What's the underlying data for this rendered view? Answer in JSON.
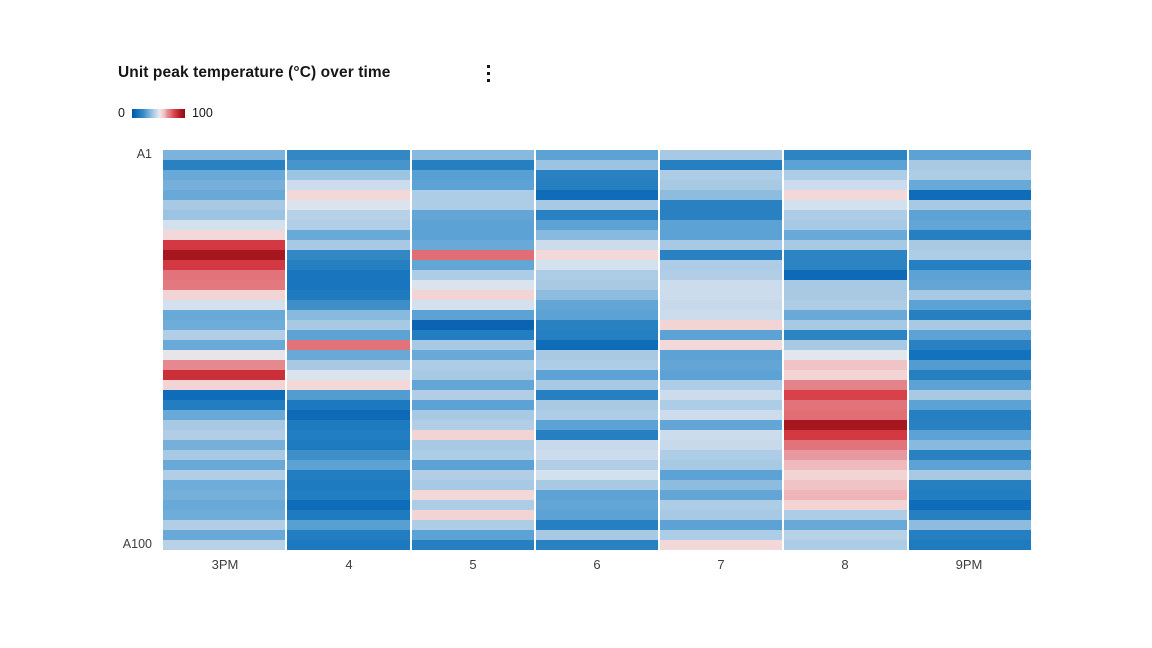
{
  "header": {
    "title": "Unit peak temperature (°C) over time",
    "menu_icon": "overflow-menu-vertical"
  },
  "legend": {
    "min": "0",
    "max": "100"
  },
  "chart_data": {
    "type": "heatmap",
    "title": "Unit peak temperature (°C) over time",
    "x": [
      "3PM",
      "4",
      "5",
      "6",
      "7",
      "8",
      "9PM"
    ],
    "y_first": "A1",
    "y_last": "A100",
    "rows": 40,
    "value_range": [
      0,
      100
    ],
    "legend_position": "top-left",
    "grid": "off",
    "color_scale": {
      "stops": [
        [
          0,
          "#0353a4"
        ],
        [
          10,
          "#1272bd"
        ],
        [
          20,
          "#3388c4"
        ],
        [
          30,
          "#68a9d8"
        ],
        [
          40,
          "#a8c9e4"
        ],
        [
          47,
          "#ccdcec"
        ],
        [
          50,
          "#e2e7ee"
        ],
        [
          53,
          "#f0e2e2"
        ],
        [
          57,
          "#f2d4d4"
        ],
        [
          63,
          "#eeb4b8"
        ],
        [
          65,
          "#e898a0"
        ],
        [
          72,
          "#e2737b"
        ],
        [
          80,
          "#d8404a"
        ],
        [
          85,
          "#cb2f38"
        ],
        [
          93,
          "#a5161f"
        ],
        [
          100,
          "#8a0e17"
        ]
      ]
    },
    "values": [
      [
        33,
        20,
        35,
        28,
        40,
        18,
        28
      ],
      [
        17,
        24,
        16,
        38,
        16,
        28,
        40
      ],
      [
        30,
        38,
        27,
        17,
        41,
        41,
        41
      ],
      [
        32,
        47,
        28,
        16,
        40,
        47,
        30
      ],
      [
        30,
        56,
        41,
        8,
        36,
        56,
        8
      ],
      [
        40,
        49,
        41,
        40,
        17,
        48,
        40
      ],
      [
        38,
        43,
        29,
        17,
        17,
        41,
        28
      ],
      [
        48,
        42,
        28,
        28,
        28,
        40,
        29
      ],
      [
        56,
        30,
        28,
        35,
        28,
        30,
        16
      ],
      [
        82,
        40,
        30,
        47,
        40,
        40,
        40
      ],
      [
        93,
        20,
        73,
        56,
        17,
        18,
        41
      ],
      [
        82,
        16,
        29,
        48,
        41,
        18,
        16
      ],
      [
        72,
        12,
        41,
        41,
        42,
        7,
        28
      ],
      [
        71,
        12,
        49,
        40,
        47,
        40,
        29
      ],
      [
        57,
        14,
        57,
        36,
        47,
        40,
        40
      ],
      [
        48,
        22,
        48,
        29,
        46,
        41,
        28
      ],
      [
        30,
        35,
        28,
        28,
        47,
        30,
        16
      ],
      [
        31,
        40,
        5,
        17,
        57,
        40,
        40
      ],
      [
        42,
        28,
        15,
        16,
        28,
        18,
        28
      ],
      [
        30,
        72,
        40,
        8,
        56,
        40,
        17
      ],
      [
        51,
        30,
        30,
        40,
        28,
        50,
        10
      ],
      [
        68,
        40,
        41,
        41,
        29,
        60,
        26
      ],
      [
        85,
        49,
        40,
        28,
        28,
        57,
        16
      ],
      [
        57,
        56,
        29,
        40,
        41,
        69,
        28
      ],
      [
        8,
        26,
        42,
        16,
        47,
        80,
        40
      ],
      [
        15,
        13,
        28,
        40,
        41,
        72,
        28
      ],
      [
        30,
        7,
        40,
        41,
        47,
        73,
        16
      ],
      [
        40,
        14,
        42,
        28,
        29,
        93,
        17
      ],
      [
        42,
        15,
        57,
        16,
        47,
        82,
        28
      ],
      [
        32,
        14,
        40,
        46,
        46,
        72,
        35
      ],
      [
        40,
        22,
        41,
        47,
        41,
        65,
        17
      ],
      [
        30,
        28,
        28,
        42,
        40,
        62,
        28
      ],
      [
        42,
        15,
        42,
        48,
        28,
        57,
        40
      ],
      [
        31,
        14,
        40,
        40,
        36,
        60,
        16
      ],
      [
        32,
        15,
        56,
        28,
        29,
        63,
        15
      ],
      [
        30,
        8,
        41,
        29,
        41,
        57,
        8
      ],
      [
        31,
        14,
        57,
        28,
        40,
        41,
        16
      ],
      [
        42,
        27,
        41,
        16,
        28,
        30,
        36
      ],
      [
        30,
        15,
        28,
        40,
        41,
        43,
        16
      ],
      [
        43,
        13,
        16,
        17,
        56,
        41,
        14
      ]
    ]
  }
}
